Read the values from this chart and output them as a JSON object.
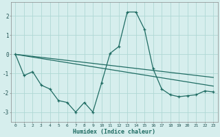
{
  "xlabel": "Humidex (Indice chaleur)",
  "background_color": "#d6eeed",
  "grid_color": "#afd8d4",
  "line_color": "#1e6b62",
  "xlim": [
    -0.5,
    23.5
  ],
  "ylim": [
    -3.5,
    2.7
  ],
  "yticks": [
    -3,
    -2,
    -1,
    0,
    1,
    2
  ],
  "xticks": [
    0,
    1,
    2,
    3,
    4,
    5,
    6,
    7,
    8,
    9,
    10,
    11,
    12,
    13,
    14,
    15,
    16,
    17,
    18,
    19,
    20,
    21,
    22,
    23
  ],
  "series1_x": [
    0,
    1,
    2,
    3,
    4,
    5,
    6,
    7,
    8,
    9,
    10,
    11,
    12,
    13,
    14,
    15,
    16,
    17,
    18,
    19,
    20,
    21,
    22,
    23
  ],
  "series1_y": [
    0.0,
    -1.1,
    -0.9,
    -1.6,
    -1.8,
    -2.4,
    -2.5,
    -3.0,
    -2.5,
    -3.0,
    -1.5,
    0.05,
    0.4,
    2.2,
    2.2,
    1.3,
    -0.75,
    -1.8,
    -2.1,
    -2.2,
    -2.15,
    -2.1,
    -1.9,
    -1.95
  ],
  "series2_x": [
    0,
    23
  ],
  "series2_y": [
    0.0,
    -1.2
  ],
  "series3_x": [
    0,
    23
  ],
  "series3_y": [
    0.0,
    -1.65
  ]
}
